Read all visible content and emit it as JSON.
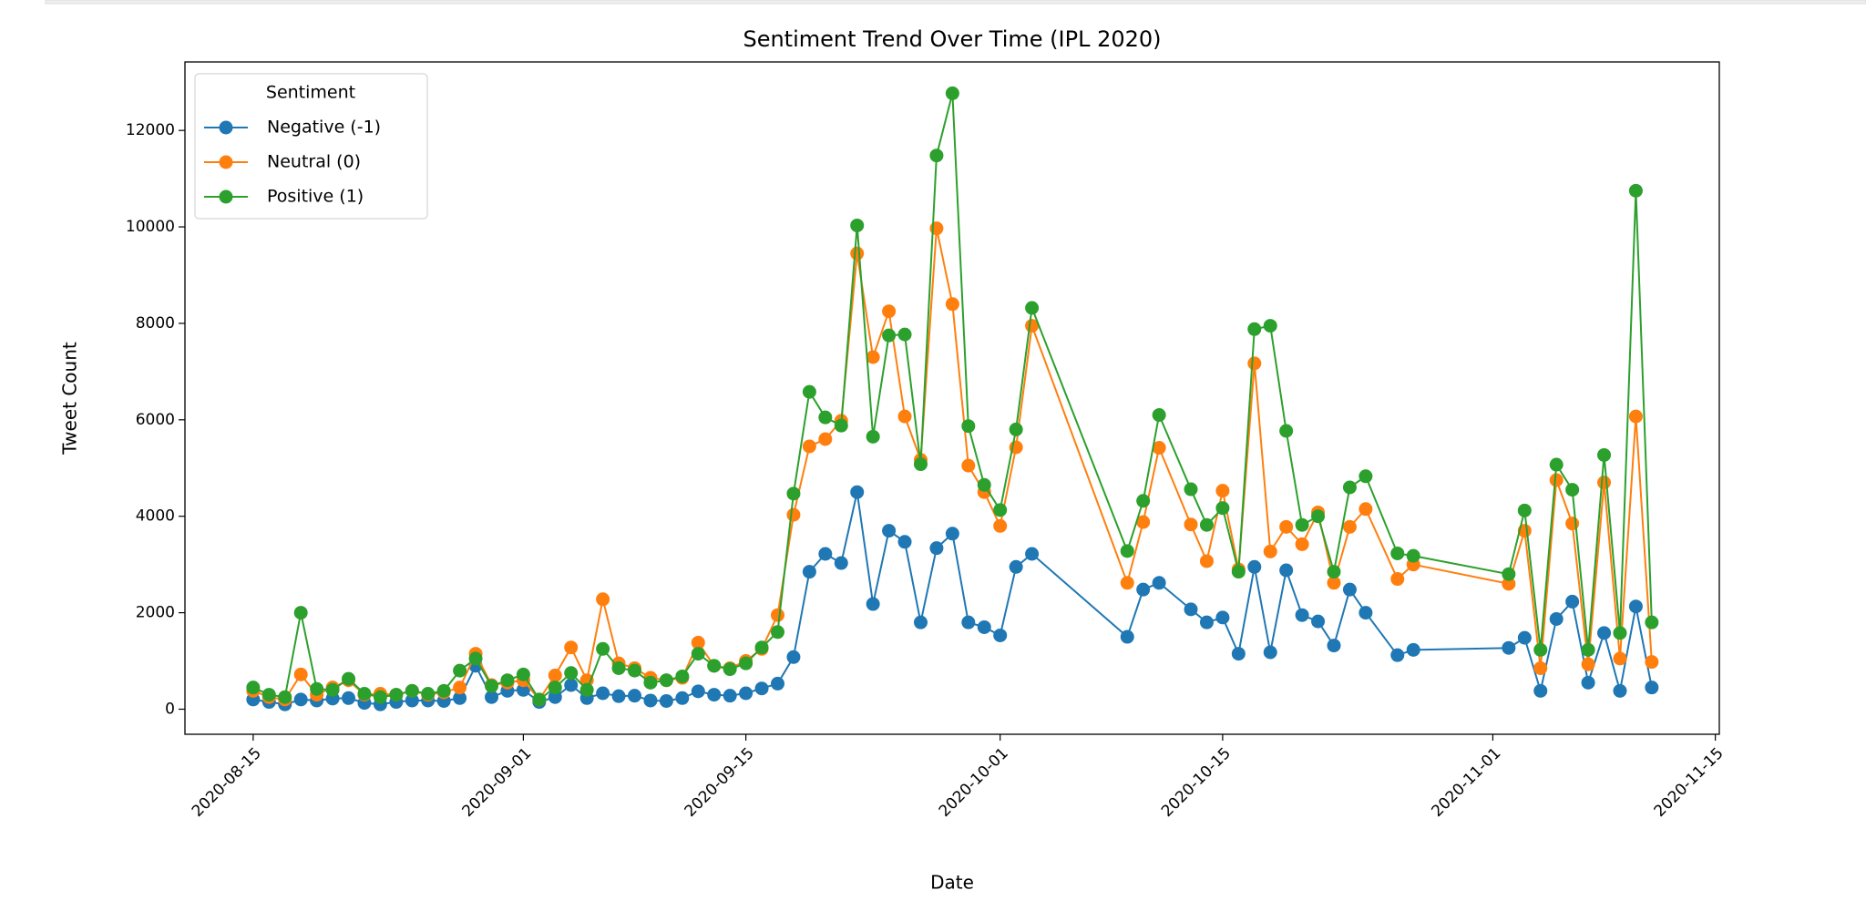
{
  "chart_data": {
    "type": "line",
    "title": "Sentiment Trend Over Time (IPL 2020)",
    "xlabel": "Date",
    "ylabel": "Tweet Count",
    "legend_title": "Sentiment",
    "legend": "upper left",
    "grid": false,
    "x": [
      "2020-08-15",
      "2020-08-16",
      "2020-08-17",
      "2020-08-18",
      "2020-08-19",
      "2020-08-20",
      "2020-08-21",
      "2020-08-22",
      "2020-08-23",
      "2020-08-24",
      "2020-08-25",
      "2020-08-26",
      "2020-08-27",
      "2020-08-28",
      "2020-08-29",
      "2020-08-30",
      "2020-08-31",
      "2020-09-01",
      "2020-09-02",
      "2020-09-03",
      "2020-09-04",
      "2020-09-05",
      "2020-09-06",
      "2020-09-07",
      "2020-09-08",
      "2020-09-09",
      "2020-09-10",
      "2020-09-11",
      "2020-09-12",
      "2020-09-13",
      "2020-09-14",
      "2020-09-15",
      "2020-09-16",
      "2020-09-17",
      "2020-09-18",
      "2020-09-19",
      "2020-09-20",
      "2020-09-21",
      "2020-09-22",
      "2020-09-23",
      "2020-09-24",
      "2020-09-25",
      "2020-09-26",
      "2020-09-27",
      "2020-09-28",
      "2020-09-29",
      "2020-09-30",
      "2020-10-01",
      "2020-10-02",
      "2020-10-03",
      "2020-10-09",
      "2020-10-10",
      "2020-10-11",
      "2020-10-13",
      "2020-10-14",
      "2020-10-15",
      "2020-10-16",
      "2020-10-17",
      "2020-10-18",
      "2020-10-19",
      "2020-10-20",
      "2020-10-21",
      "2020-10-22",
      "2020-10-23",
      "2020-10-24",
      "2020-10-26",
      "2020-10-27",
      "2020-11-02",
      "2020-11-03",
      "2020-11-04",
      "2020-11-05",
      "2020-11-06",
      "2020-11-07",
      "2020-11-08",
      "2020-11-09",
      "2020-11-10",
      "2020-11-11"
    ],
    "series": [
      {
        "name": "Negative (-1)",
        "color": "#1f77b4",
        "values": [
          200,
          150,
          100,
          200,
          180,
          220,
          230,
          130,
          100,
          150,
          180,
          180,
          170,
          230,
          900,
          250,
          380,
          400,
          150,
          250,
          500,
          230,
          330,
          270,
          280,
          180,
          170,
          230,
          370,
          300,
          280,
          330,
          430,
          530,
          1080,
          2850,
          3220,
          3030,
          4500,
          2180,
          3700,
          3470,
          1800,
          3340,
          3640,
          1800,
          1700,
          1530,
          2950,
          3220,
          1500,
          2480,
          2620,
          2070,
          1800,
          1900,
          1150,
          2950,
          1180,
          2880,
          1950,
          1820,
          1320,
          2480,
          2000,
          1120,
          1230,
          1270,
          1480,
          380,
          1870,
          2230,
          550,
          1580,
          380,
          2130,
          450
        ]
      },
      {
        "name": "Neutral (0)",
        "color": "#ff7f0e",
        "values": [
          380,
          250,
          200,
          720,
          300,
          450,
          600,
          300,
          320,
          300,
          380,
          300,
          350,
          450,
          1150,
          500,
          550,
          600,
          200,
          700,
          1280,
          600,
          2280,
          950,
          850,
          650,
          600,
          650,
          1380,
          900,
          850,
          1000,
          1250,
          1950,
          4030,
          5450,
          5600,
          5980,
          9450,
          7300,
          8250,
          6070,
          5170,
          9970,
          8400,
          5050,
          4500,
          3800,
          5430,
          7950,
          2620,
          3880,
          5420,
          3830,
          3070,
          4530,
          2900,
          7170,
          3270,
          3780,
          3420,
          4080,
          2620,
          3780,
          4150,
          2700,
          3000,
          2600,
          3700,
          850,
          4750,
          3850,
          930,
          4700,
          1050,
          6070,
          980
        ]
      },
      {
        "name": "Positive (1)",
        "color": "#2ca02c",
        "values": [
          450,
          300,
          250,
          2000,
          420,
          400,
          630,
          320,
          250,
          300,
          380,
          320,
          380,
          800,
          1050,
          480,
          600,
          720,
          200,
          450,
          750,
          400,
          1250,
          850,
          800,
          550,
          600,
          680,
          1150,
          900,
          830,
          950,
          1280,
          1600,
          4470,
          6580,
          6050,
          5880,
          10030,
          5650,
          7750,
          7770,
          5080,
          11480,
          12770,
          5870,
          4650,
          4130,
          5800,
          8320,
          3280,
          4320,
          6100,
          4560,
          3820,
          4170,
          2850,
          7880,
          7950,
          5770,
          3820,
          4000,
          2850,
          4600,
          4830,
          3230,
          3180,
          2800,
          4120,
          1230,
          5070,
          4550,
          1230,
          5270,
          1580,
          10750,
          1800
        ]
      }
    ],
    "xlim": [
      "2020-08-10T17:00:00Z",
      "2020-11-15T06:00:00Z"
    ],
    "xticks": [
      "2020-08-15",
      "2020-09-01",
      "2020-09-15",
      "2020-10-01",
      "2020-10-15",
      "2020-11-01",
      "2020-11-15"
    ],
    "ylim": [
      -520,
      13420
    ],
    "yticks": [
      0,
      2000,
      4000,
      6000,
      8000,
      10000,
      12000
    ]
  }
}
